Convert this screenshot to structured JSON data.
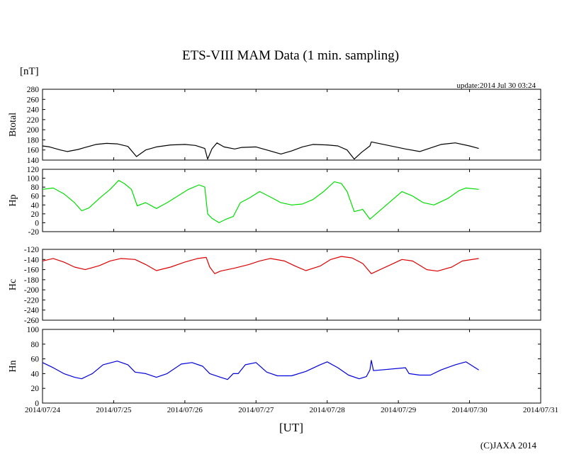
{
  "chart_data": {
    "type": "line",
    "title": "ETS-VIII MAM Data (1 min. sampling)",
    "unit_label": "[nT]",
    "update_text": "update:2014 Jul 30 03:24",
    "xlabel": "[UT]",
    "credit": "(C)JAXA 2014",
    "x_ticks": [
      "2014/07/24",
      "2014/07/25",
      "2014/07/26",
      "2014/07/27",
      "2014/07/28",
      "2014/07/29",
      "2014/07/30",
      "2014/07/31"
    ],
    "xlim": [
      0,
      7
    ],
    "panels": [
      {
        "name": "Btotal",
        "ylabel": "Btotal",
        "color": "#000000",
        "ylim": [
          140,
          280
        ],
        "yticks": [
          "280",
          "260",
          "240",
          "220",
          "200",
          "180",
          "160",
          "140"
        ],
        "data": [
          [
            0,
            168
          ],
          [
            0.1,
            166
          ],
          [
            0.25,
            160
          ],
          [
            0.35,
            157
          ],
          [
            0.5,
            161
          ],
          [
            0.6,
            165
          ],
          [
            0.75,
            171
          ],
          [
            0.9,
            173
          ],
          [
            1.05,
            172
          ],
          [
            1.2,
            167
          ],
          [
            1.32,
            147
          ],
          [
            1.45,
            160
          ],
          [
            1.6,
            166
          ],
          [
            1.8,
            170
          ],
          [
            2.0,
            171
          ],
          [
            2.15,
            169
          ],
          [
            2.28,
            163
          ],
          [
            2.32,
            142
          ],
          [
            2.38,
            162
          ],
          [
            2.45,
            174
          ],
          [
            2.55,
            166
          ],
          [
            2.7,
            162
          ],
          [
            2.8,
            165
          ],
          [
            3.0,
            166
          ],
          [
            3.15,
            160
          ],
          [
            3.35,
            152
          ],
          [
            3.5,
            158
          ],
          [
            3.65,
            166
          ],
          [
            3.8,
            171
          ],
          [
            4.0,
            170
          ],
          [
            4.15,
            168
          ],
          [
            4.28,
            160
          ],
          [
            4.38,
            142
          ],
          [
            4.48,
            155
          ],
          [
            4.6,
            168
          ],
          [
            4.62,
            176
          ],
          [
            5.1,
            162
          ],
          [
            5.3,
            157
          ],
          [
            5.45,
            164
          ],
          [
            5.6,
            171
          ],
          [
            5.8,
            174
          ],
          [
            6.0,
            168
          ],
          [
            6.13,
            163
          ]
        ]
      },
      {
        "name": "Hp",
        "ylabel": "Hp",
        "color": "#00dd00",
        "ylim": [
          -20,
          120
        ],
        "yticks": [
          "120",
          "100",
          "80",
          "60",
          "40",
          "20",
          "0",
          "-20"
        ],
        "data": [
          [
            0,
            75
          ],
          [
            0.15,
            78
          ],
          [
            0.3,
            65
          ],
          [
            0.45,
            45
          ],
          [
            0.55,
            27
          ],
          [
            0.65,
            33
          ],
          [
            0.8,
            55
          ],
          [
            0.95,
            75
          ],
          [
            1.07,
            95
          ],
          [
            1.15,
            88
          ],
          [
            1.25,
            75
          ],
          [
            1.33,
            38
          ],
          [
            1.45,
            45
          ],
          [
            1.6,
            32
          ],
          [
            1.75,
            45
          ],
          [
            1.9,
            60
          ],
          [
            2.05,
            75
          ],
          [
            2.2,
            85
          ],
          [
            2.28,
            80
          ],
          [
            2.32,
            20
          ],
          [
            2.38,
            10
          ],
          [
            2.48,
            0
          ],
          [
            2.58,
            8
          ],
          [
            2.68,
            14
          ],
          [
            2.78,
            45
          ],
          [
            2.9,
            55
          ],
          [
            3.05,
            70
          ],
          [
            3.2,
            58
          ],
          [
            3.35,
            45
          ],
          [
            3.5,
            40
          ],
          [
            3.65,
            42
          ],
          [
            3.8,
            52
          ],
          [
            3.95,
            70
          ],
          [
            4.1,
            92
          ],
          [
            4.2,
            88
          ],
          [
            4.28,
            70
          ],
          [
            4.38,
            25
          ],
          [
            4.5,
            30
          ],
          [
            4.6,
            8
          ],
          [
            5.05,
            70
          ],
          [
            5.2,
            60
          ],
          [
            5.35,
            45
          ],
          [
            5.5,
            40
          ],
          [
            5.7,
            55
          ],
          [
            5.85,
            72
          ],
          [
            5.95,
            78
          ],
          [
            6.13,
            75
          ]
        ]
      },
      {
        "name": "Hc",
        "ylabel": "Hc",
        "color": "#dd0000",
        "ylim": [
          -260,
          -120
        ],
        "yticks": [
          "-120",
          "-140",
          "-160",
          "-180",
          "-200",
          "-220",
          "-240",
          "-260"
        ],
        "data": [
          [
            0,
            -143
          ],
          [
            0.15,
            -138
          ],
          [
            0.3,
            -145
          ],
          [
            0.45,
            -155
          ],
          [
            0.6,
            -160
          ],
          [
            0.8,
            -152
          ],
          [
            0.95,
            -143
          ],
          [
            1.1,
            -138
          ],
          [
            1.3,
            -140
          ],
          [
            1.45,
            -150
          ],
          [
            1.6,
            -162
          ],
          [
            1.8,
            -155
          ],
          [
            2.0,
            -145
          ],
          [
            2.18,
            -138
          ],
          [
            2.3,
            -136
          ],
          [
            2.35,
            -155
          ],
          [
            2.42,
            -168
          ],
          [
            2.5,
            -163
          ],
          [
            2.7,
            -157
          ],
          [
            2.9,
            -150
          ],
          [
            3.05,
            -143
          ],
          [
            3.2,
            -138
          ],
          [
            3.4,
            -143
          ],
          [
            3.55,
            -153
          ],
          [
            3.7,
            -162
          ],
          [
            3.9,
            -153
          ],
          [
            4.05,
            -140
          ],
          [
            4.2,
            -134
          ],
          [
            4.35,
            -137
          ],
          [
            4.5,
            -148
          ],
          [
            4.62,
            -168
          ],
          [
            5.05,
            -140
          ],
          [
            5.2,
            -143
          ],
          [
            5.4,
            -160
          ],
          [
            5.55,
            -163
          ],
          [
            5.75,
            -155
          ],
          [
            5.9,
            -143
          ],
          [
            6.13,
            -138
          ]
        ]
      },
      {
        "name": "Hn",
        "ylabel": "Hn",
        "color": "#0000dd",
        "ylim": [
          0,
          100
        ],
        "yticks": [
          "100",
          "80",
          "60",
          "40",
          "20",
          "0"
        ],
        "data": [
          [
            0,
            55
          ],
          [
            0.15,
            48
          ],
          [
            0.3,
            40
          ],
          [
            0.45,
            35
          ],
          [
            0.55,
            33
          ],
          [
            0.7,
            40
          ],
          [
            0.85,
            52
          ],
          [
            1.05,
            57
          ],
          [
            1.2,
            52
          ],
          [
            1.3,
            42
          ],
          [
            1.45,
            40
          ],
          [
            1.6,
            35
          ],
          [
            1.75,
            40
          ],
          [
            1.95,
            53
          ],
          [
            2.1,
            55
          ],
          [
            2.25,
            50
          ],
          [
            2.35,
            40
          ],
          [
            2.5,
            35
          ],
          [
            2.6,
            32
          ],
          [
            2.68,
            40
          ],
          [
            2.75,
            40
          ],
          [
            2.85,
            52
          ],
          [
            3.0,
            55
          ],
          [
            3.15,
            42
          ],
          [
            3.3,
            37
          ],
          [
            3.5,
            37
          ],
          [
            3.7,
            43
          ],
          [
            3.9,
            52
          ],
          [
            4.0,
            56
          ],
          [
            4.15,
            48
          ],
          [
            4.3,
            38
          ],
          [
            4.45,
            33
          ],
          [
            4.55,
            36
          ],
          [
            4.6,
            45
          ],
          [
            4.62,
            58
          ],
          [
            4.65,
            44
          ],
          [
            5.1,
            48
          ],
          [
            5.15,
            40
          ],
          [
            5.3,
            38
          ],
          [
            5.45,
            38
          ],
          [
            5.6,
            45
          ],
          [
            5.8,
            52
          ],
          [
            5.95,
            56
          ],
          [
            6.13,
            45
          ]
        ]
      }
    ]
  }
}
